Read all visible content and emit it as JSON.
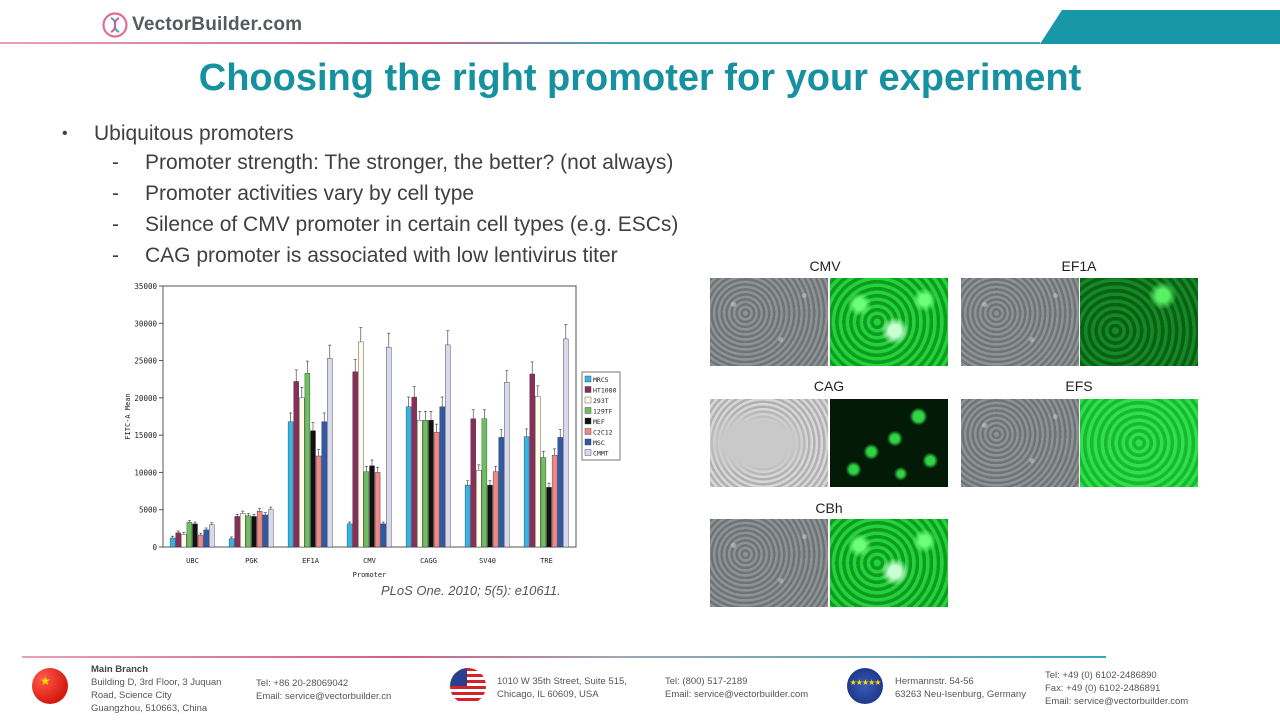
{
  "header": {
    "logo_text": "VectorBuilder.com",
    "title": "Choosing the right promoter for your experiment"
  },
  "bullets": {
    "main": "Ubiquitous promoters",
    "subs": [
      "Promoter strength: The stronger, the better? (not always)",
      "Promoter activities vary by cell type",
      "Silence of CMV promoter in certain cell types (e.g. ESCs)",
      "CAG promoter is associated with low lentivirus titer"
    ]
  },
  "chart_data": {
    "type": "bar",
    "xlabel": "Promoter",
    "ylabel": "FITC-A Mean",
    "ylim": [
      0,
      35000
    ],
    "yticks": [
      "0",
      "5000",
      "10000",
      "15000",
      "20000",
      "25000",
      "30000",
      "35000"
    ],
    "categories": [
      "UBC",
      "PGK",
      "EF1A",
      "CMV",
      "CAGG",
      "SV40",
      "TRE"
    ],
    "legend_position": "right",
    "series": [
      {
        "name": "MRC5",
        "color": "#36b5e5",
        "values": [
          1200,
          1100,
          16800,
          3100,
          18800,
          8300,
          14800
        ]
      },
      {
        "name": "HT1080",
        "color": "#8b2d5c",
        "values": [
          1900,
          4100,
          22200,
          23500,
          20100,
          17200,
          23200
        ]
      },
      {
        "name": "293T",
        "color": "#fffbe8",
        "values": [
          1700,
          4500,
          20000,
          27500,
          17000,
          10300,
          20200
        ]
      },
      {
        "name": "129TF",
        "color": "#6dc060",
        "values": [
          3300,
          4200,
          23300,
          10100,
          17000,
          17200,
          12000
        ]
      },
      {
        "name": "MEF",
        "color": "#111111",
        "values": [
          3100,
          4100,
          15600,
          10900,
          17000,
          8300,
          8000
        ]
      },
      {
        "name": "C2C12",
        "color": "#f08888",
        "values": [
          1600,
          4800,
          12200,
          10000,
          15400,
          10100,
          12300
        ]
      },
      {
        "name": "MSC",
        "color": "#2e5aa8",
        "values": [
          2300,
          4300,
          16800,
          3100,
          18800,
          14700,
          14700
        ]
      },
      {
        "name": "CMMT",
        "color": "#d8d8ee",
        "values": [
          3000,
          5000,
          25300,
          26800,
          27100,
          22100,
          27900
        ]
      }
    ]
  },
  "citation": "PLoS One. 2010; 5(5): e10611.",
  "micrographs": [
    {
      "label": "CMV"
    },
    {
      "label": "EF1A"
    },
    {
      "label": "CAG"
    },
    {
      "label": "EFS"
    },
    {
      "label": "CBh"
    }
  ],
  "footer": {
    "china": {
      "heading": "Main Branch",
      "address": [
        "Building D, 3rd Floor, 3 Juquan",
        "Road, Science City",
        "Guangzhou, 510663, China"
      ],
      "tel": "Tel: +86 20-28069042",
      "email": "Email: service@vectorbuilder.cn"
    },
    "usa": {
      "address": [
        "1010 W 35th Street, Suite 515,",
        "Chicago, IL 60609, USA"
      ],
      "tel": "Tel: (800) 517-2189",
      "email": "Email: service@vectorbuilder.com"
    },
    "eu": {
      "address": [
        "Hermannstr. 54-56",
        "63263 Neu-Isenburg, Germany"
      ],
      "tel": "Tel: +49 (0) 6102-2486890",
      "fax": "Fax: +49 (0) 6102-2486891",
      "email": "Email: service@vectorbuilder.com"
    }
  }
}
